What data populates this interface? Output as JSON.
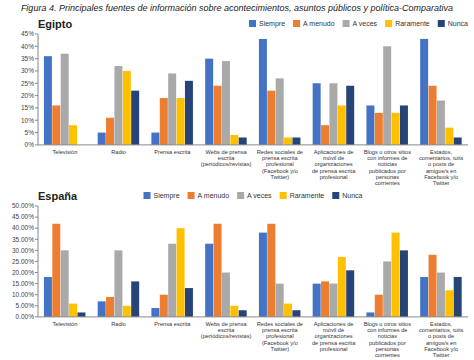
{
  "title": "Figura 4. Principales fuentes de información sobre acontecimientos, asuntos públicos y política-Comparativa",
  "chart_data": [
    {
      "type": "bar",
      "title": "Egipto",
      "categories": [
        "Televisión",
        "Radio",
        "Prensa escrita",
        "Webs de prensa\nescrita\n(periódicos/revistas)",
        "Redes sociales de\nprensa escrita\nprofesional\n(Facebook y/o\nTwitter)",
        "Aplicaciones de\nmóvil de\norganizaciones\nde prensa escrita\nprofesional",
        "Blogs u otros sitios\ncon informes de\nnoticias\npublicados por\npersonas\ncorrientes",
        "Estados,\ncomentarios, tuits\no posts de\namigos/s en\nFacebook y/o\nTwitter"
      ],
      "series": [
        {
          "name": "Siempre",
          "color": "#4472C4",
          "values": [
            36,
            5,
            5,
            35,
            43,
            25,
            16,
            43
          ]
        },
        {
          "name": "A menudo",
          "color": "#ED7D31",
          "values": [
            16,
            11,
            19,
            24,
            22,
            8,
            13,
            24
          ]
        },
        {
          "name": "A veces",
          "color": "#A9A9A9",
          "values": [
            37,
            32,
            29,
            34,
            27,
            25,
            40,
            18
          ]
        },
        {
          "name": "Raramente",
          "color": "#FFC000",
          "values": [
            8,
            30,
            19,
            4,
            3,
            16,
            13,
            7
          ]
        },
        {
          "name": "Nunca",
          "color": "#264478",
          "values": [
            0,
            22,
            26,
            3,
            3,
            24,
            16,
            3
          ]
        }
      ],
      "ylim": [
        0,
        45
      ],
      "yticks": [
        {
          "value": 0,
          "label": "0%"
        },
        {
          "value": 5,
          "label": "5%"
        },
        {
          "value": 10,
          "label": "10%"
        },
        {
          "value": 15,
          "label": "15%"
        },
        {
          "value": 20,
          "label": "20%"
        },
        {
          "value": 25,
          "label": "25%"
        },
        {
          "value": 30,
          "label": "30%"
        },
        {
          "value": 35,
          "label": "35%"
        },
        {
          "value": 40,
          "label": "40%"
        },
        {
          "value": 45,
          "label": "45%"
        }
      ],
      "grid": false,
      "legend": "upper right"
    },
    {
      "type": "bar",
      "title": "España",
      "categories": [
        "Televisión",
        "Radio",
        "Prensa escrita",
        "Webs de prensa\nescrita\n(periódicos/revistas)",
        "Redes sociales de\nprensa escrita\nprofesional\n(Facebook y/o\nTwitter)",
        "Aplicaciones de\nmóvil de\norganizaciones\nde prensa escrita\nprofesional",
        "Blogs u otros sitios\ncon informes de\nnoticias\npublicados por\npersonas\ncorrientes",
        "Estados,\ncomentarios, tuits\no posts de\namigos/s en\nFacebook y/o\nTwitter"
      ],
      "series": [
        {
          "name": "Siempre",
          "color": "#4472C4",
          "values": [
            18,
            7,
            4,
            33,
            38,
            15,
            2,
            18
          ]
        },
        {
          "name": "A menudo",
          "color": "#ED7D31",
          "values": [
            42,
            9,
            10,
            42,
            42,
            16,
            10,
            28
          ]
        },
        {
          "name": "A veces",
          "color": "#A9A9A9",
          "values": [
            30,
            30,
            33,
            20,
            15,
            15,
            25,
            20
          ]
        },
        {
          "name": "Raramente",
          "color": "#FFC000",
          "values": [
            6,
            5,
            40,
            5,
            6,
            27,
            38,
            12
          ]
        },
        {
          "name": "Nunca",
          "color": "#264478",
          "values": [
            2,
            16,
            13,
            3,
            3,
            21,
            30,
            18
          ]
        }
      ],
      "ylim": [
        0,
        50
      ],
      "yticks": [
        {
          "value": 0,
          "label": "0.00%"
        },
        {
          "value": 5,
          "label": "5.00%"
        },
        {
          "value": 10,
          "label": "10.00%"
        },
        {
          "value": 15,
          "label": "15.00%"
        },
        {
          "value": 20,
          "label": "20.00%"
        },
        {
          "value": 25,
          "label": "25.00%"
        },
        {
          "value": 30,
          "label": "30.00%"
        },
        {
          "value": 35,
          "label": "35.00%"
        },
        {
          "value": 40,
          "label": "40.00%"
        },
        {
          "value": 45,
          "label": "45.00%"
        },
        {
          "value": 50,
          "label": "50.00%"
        }
      ],
      "grid": false,
      "legend": "upper center"
    }
  ]
}
